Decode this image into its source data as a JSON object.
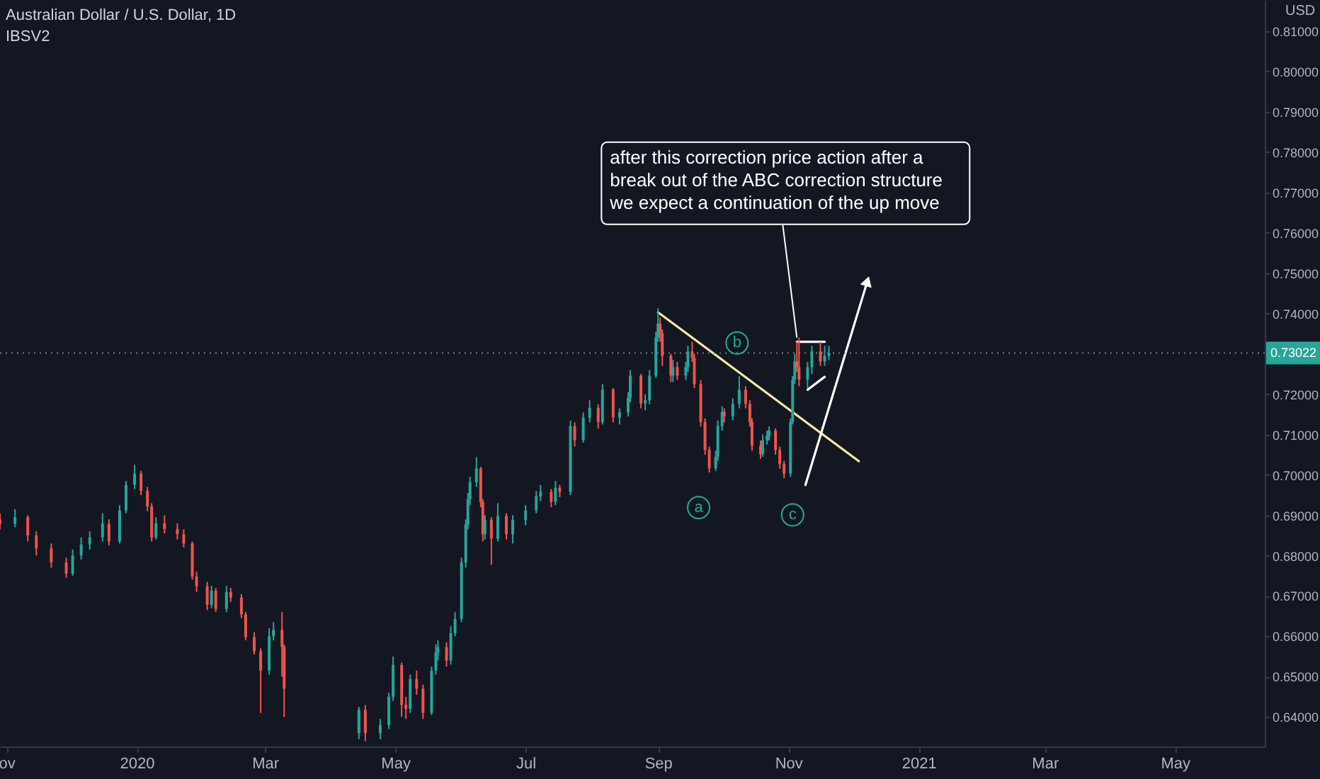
{
  "chart_data": {
    "type": "candlestick",
    "title": "Australian Dollar / U.S. Dollar, 1D",
    "subtitle": "IBSV2",
    "ylabel": "USD",
    "colors": [
      "#ef5350",
      "#26a69a",
      "#ef5350",
      "#ef5350",
      "#ef5350",
      "#ef5350",
      "#26a69a",
      "#26a69a",
      "#26a69a",
      "#26a69a",
      "#ef5350",
      "#26a69a",
      "#26a69a",
      "#26a69a",
      "#ef5350",
      "#ef5350",
      "#ef5350",
      "#26a69a",
      "#ef5350",
      "#ef5350",
      "#ef5350",
      "#ef5350",
      "#ef5350",
      "#ef5350",
      "#26a69a",
      "#ef5350",
      "#26a69a",
      "#ef5350",
      "#ef5350",
      "#ef5350",
      "#ef5350",
      "#ef5350",
      "#26a69a",
      "#26a69a",
      "#ef5350",
      "#ef5350",
      "#26a69a",
      "#ef5350",
      "#26a69a",
      "#26a69a",
      "#26a69a",
      "#ef5350",
      "#ef5350",
      "#26a69a",
      "#ef5350",
      "#ef5350",
      "#26a69a",
      "#26a69a",
      "#26a69a",
      "#ef5350",
      "#26a69a",
      "#26a69a",
      "#26a69a",
      "#26a69a",
      "#26a69a",
      "#26a69a",
      "#26a69a",
      "#ef5350",
      "#ef5350",
      "#26a69a",
      "#ef5350",
      "#26a69a",
      "#ef5350",
      "#26a69a",
      "#26a69a",
      "#26a69a",
      "#26a69a",
      "#ef5350",
      "#26a69a",
      "#ef5350",
      "#26a69a",
      "#ef5350",
      "#26a69a",
      "#26a69a",
      "#ef5350",
      "#26a69a",
      "#ef5350",
      "#26a69a",
      "#26a69a",
      "#26a69a",
      "#ef5350",
      "#26a69a",
      "#26a69a",
      "#26a69a",
      "#26a69a",
      "#ef5350",
      "#ef5350",
      "#ef5350",
      "#26a69a",
      "#ef5350",
      "#26a69a",
      "#26a69a",
      "#ef5350",
      "#ef5350",
      "#ef5350",
      "#ef5350",
      "#ef5350",
      "#26a69a",
      "#26a69a",
      "#26a69a",
      "#ef5350",
      "#26a69a",
      "#26a69a",
      "#ef5350",
      "#ef5350",
      "#ef5350",
      "#ef5350",
      "#26a69a",
      "#26a69a",
      "#26a69a",
      "#ef5350",
      "#ef5350",
      "#ef5350",
      "#26a69a",
      "#26a69a",
      "#26a69a",
      "#ef5350",
      "#ef5350",
      "#26a69a",
      "#26a69a",
      "#ef5350",
      "#26a69a",
      "#26a69a"
    ],
    "x": [
      "2019-10-29",
      "2019-11-05",
      "2019-11-11",
      "2019-11-15",
      "2019-11-22",
      "2019-11-29",
      "2019-12-02",
      "2019-12-06",
      "2019-12-10",
      "2019-12-16",
      "2019-12-19",
      "2019-12-24",
      "2019-12-27",
      "2019-12-31",
      "2020-01-03",
      "2020-01-06",
      "2020-01-08",
      "2020-01-10",
      "2020-01-14",
      "2020-01-20",
      "2020-01-23",
      "2020-01-27",
      "2020-01-29",
      "2020-02-03",
      "2020-02-05",
      "2020-02-07",
      "2020-02-12",
      "2020-02-14",
      "2020-02-19",
      "2020-02-21",
      "2020-02-25",
      "2020-02-28",
      "2020-03-03",
      "2020-03-05",
      "2020-03-09",
      "2020-03-10",
      "2020-04-14",
      "2020-04-17",
      "2020-04-24",
      "2020-04-28",
      "2020-04-30",
      "2020-05-04",
      "2020-05-06",
      "2020-05-08",
      "2020-05-11",
      "2020-05-14",
      "2020-05-18",
      "2020-05-20",
      "2020-05-21",
      "2020-05-25",
      "2020-05-27",
      "2020-05-29",
      "2020-06-01",
      "2020-06-03",
      "2020-06-04",
      "2020-06-05",
      "2020-06-08",
      "2020-06-10",
      "2020-06-11",
      "2020-06-12",
      "2020-06-15",
      "2020-06-18",
      "2020-06-22",
      "2020-06-25",
      "2020-07-01",
      "2020-07-06",
      "2020-07-08",
      "2020-07-13",
      "2020-07-15",
      "2020-07-17",
      "2020-07-22",
      "2020-07-24",
      "2020-07-28",
      "2020-07-31",
      "2020-08-04",
      "2020-08-06",
      "2020-08-11",
      "2020-08-14",
      "2020-08-18",
      "2020-08-19",
      "2020-08-24",
      "2020-08-26",
      "2020-08-28",
      "2020-08-31",
      "2020-09-01",
      "2020-09-02",
      "2020-09-03",
      "2020-09-07",
      "2020-09-08",
      "2020-09-10",
      "2020-09-14",
      "2020-09-15",
      "2020-09-17",
      "2020-09-18",
      "2020-09-21",
      "2020-09-23",
      "2020-09-25",
      "2020-09-28",
      "2020-09-29",
      "2020-10-01",
      "2020-10-02",
      "2020-10-06",
      "2020-10-09",
      "2020-10-12",
      "2020-10-14",
      "2020-10-15",
      "2020-10-19",
      "2020-10-20",
      "2020-10-22",
      "2020-10-23",
      "2020-10-26",
      "2020-10-28",
      "2020-10-30",
      "2020-11-02",
      "2020-11-03",
      "2020-11-04",
      "2020-11-05",
      "2020-11-06",
      "2020-11-10",
      "2020-11-12",
      "2020-11-16",
      "2020-11-18",
      "2020-11-20"
    ],
    "ohlc": [
      [
        0.689,
        0.6905,
        0.6865,
        0.6879
      ],
      [
        0.6879,
        0.6915,
        0.687,
        0.6895
      ],
      [
        0.6895,
        0.69,
        0.6835,
        0.685
      ],
      [
        0.685,
        0.686,
        0.68,
        0.6818
      ],
      [
        0.6818,
        0.683,
        0.677,
        0.6783
      ],
      [
        0.6783,
        0.6795,
        0.6745,
        0.6755
      ],
      [
        0.6755,
        0.6815,
        0.675,
        0.68
      ],
      [
        0.68,
        0.6845,
        0.679,
        0.6828
      ],
      [
        0.6828,
        0.686,
        0.6815,
        0.6845
      ],
      [
        0.6845,
        0.6905,
        0.6835,
        0.6879
      ],
      [
        0.6879,
        0.689,
        0.6825,
        0.6835
      ],
      [
        0.6835,
        0.6925,
        0.683,
        0.6912
      ],
      [
        0.6912,
        0.6985,
        0.6905,
        0.6975
      ],
      [
        0.6975,
        0.7025,
        0.6965,
        0.7003
      ],
      [
        0.7003,
        0.701,
        0.695,
        0.696
      ],
      [
        0.696,
        0.697,
        0.691,
        0.6922
      ],
      [
        0.6922,
        0.693,
        0.6835,
        0.6845
      ],
      [
        0.6845,
        0.6895,
        0.684,
        0.688
      ],
      [
        0.688,
        0.69,
        0.6855,
        0.6866
      ],
      [
        0.6866,
        0.688,
        0.684,
        0.6853
      ],
      [
        0.6853,
        0.6865,
        0.682,
        0.683
      ],
      [
        0.683,
        0.6835,
        0.674,
        0.6748
      ],
      [
        0.6748,
        0.676,
        0.671,
        0.6724
      ],
      [
        0.6724,
        0.6735,
        0.6665,
        0.6678
      ],
      [
        0.6678,
        0.6725,
        0.667,
        0.6713
      ],
      [
        0.6713,
        0.672,
        0.666,
        0.6668
      ],
      [
        0.6668,
        0.6725,
        0.666,
        0.671
      ],
      [
        0.671,
        0.672,
        0.6685,
        0.6696
      ],
      [
        0.6696,
        0.6705,
        0.6645,
        0.6654
      ],
      [
        0.6654,
        0.666,
        0.659,
        0.6598
      ],
      [
        0.6598,
        0.661,
        0.6555,
        0.6563
      ],
      [
        0.6563,
        0.657,
        0.641,
        0.6515
      ],
      [
        0.6515,
        0.662,
        0.6505,
        0.66
      ],
      [
        0.66,
        0.6635,
        0.659,
        0.6616
      ],
      [
        0.6616,
        0.666,
        0.65,
        0.6574
      ],
      [
        0.6574,
        0.658,
        0.64,
        0.647
      ],
      [
        0.636,
        0.6425,
        0.6345,
        0.6418
      ],
      [
        0.6418,
        0.643,
        0.634,
        0.636
      ],
      [
        0.636,
        0.6395,
        0.6345,
        0.638
      ],
      [
        0.638,
        0.646,
        0.637,
        0.645
      ],
      [
        0.645,
        0.655,
        0.644,
        0.6529
      ],
      [
        0.6529,
        0.6535,
        0.64,
        0.643
      ],
      [
        0.643,
        0.645,
        0.6395,
        0.642
      ],
      [
        0.642,
        0.6505,
        0.641,
        0.6494
      ],
      [
        0.6494,
        0.6515,
        0.6455,
        0.647
      ],
      [
        0.647,
        0.648,
        0.6395,
        0.641
      ],
      [
        0.641,
        0.6525,
        0.6405,
        0.6515
      ],
      [
        0.6515,
        0.658,
        0.6505,
        0.656
      ],
      [
        0.656,
        0.659,
        0.654,
        0.6573
      ],
      [
        0.6573,
        0.6585,
        0.6525,
        0.654
      ],
      [
        0.654,
        0.6625,
        0.653,
        0.6608
      ],
      [
        0.6608,
        0.666,
        0.66,
        0.6643
      ],
      [
        0.6643,
        0.6795,
        0.6635,
        0.6783
      ],
      [
        0.6783,
        0.689,
        0.677,
        0.6877
      ],
      [
        0.6877,
        0.6955,
        0.6865,
        0.694
      ],
      [
        0.694,
        0.6995,
        0.6925,
        0.6982
      ],
      [
        0.6982,
        0.7044,
        0.697,
        0.7016
      ],
      [
        0.7016,
        0.702,
        0.692,
        0.6933
      ],
      [
        0.6933,
        0.694,
        0.6835,
        0.6853
      ],
      [
        0.6853,
        0.69,
        0.684,
        0.6888
      ],
      [
        0.6888,
        0.6895,
        0.6777,
        0.6842
      ],
      [
        0.6842,
        0.693,
        0.6835,
        0.6898
      ],
      [
        0.6898,
        0.6905,
        0.684,
        0.6853
      ],
      [
        0.6853,
        0.69,
        0.683,
        0.6888
      ],
      [
        0.6888,
        0.6925,
        0.6875,
        0.6912
      ],
      [
        0.6912,
        0.696,
        0.6905,
        0.6947
      ],
      [
        0.6947,
        0.6975,
        0.6935,
        0.6958
      ],
      [
        0.6958,
        0.6965,
        0.692,
        0.6933
      ],
      [
        0.6933,
        0.6985,
        0.6925,
        0.6968
      ],
      [
        0.6968,
        0.6975,
        0.6945,
        0.6958
      ],
      [
        0.6958,
        0.7135,
        0.695,
        0.7121
      ],
      [
        0.7121,
        0.713,
        0.707,
        0.7086
      ],
      [
        0.7086,
        0.7155,
        0.708,
        0.7142
      ],
      [
        0.7142,
        0.7185,
        0.713,
        0.7166
      ],
      [
        0.7166,
        0.7175,
        0.7115,
        0.7131
      ],
      [
        0.7131,
        0.7225,
        0.7125,
        0.7211
      ],
      [
        0.7211,
        0.7215,
        0.713,
        0.7142
      ],
      [
        0.7142,
        0.7165,
        0.7125,
        0.7155
      ],
      [
        0.7155,
        0.7205,
        0.7145,
        0.7191
      ],
      [
        0.7191,
        0.726,
        0.718,
        0.7246
      ],
      [
        0.7246,
        0.725,
        0.7165,
        0.7177
      ],
      [
        0.7177,
        0.72,
        0.716,
        0.7185
      ],
      [
        0.7185,
        0.726,
        0.7175,
        0.7246
      ],
      [
        0.7246,
        0.7355,
        0.724,
        0.734
      ],
      [
        0.734,
        0.7413,
        0.733,
        0.7375
      ],
      [
        0.7375,
        0.739,
        0.733,
        0.7351
      ],
      [
        0.7351,
        0.736,
        0.727,
        0.7295
      ],
      [
        0.7295,
        0.73,
        0.723,
        0.7246
      ],
      [
        0.7246,
        0.7285,
        0.723,
        0.7267
      ],
      [
        0.7267,
        0.728,
        0.7235,
        0.7246
      ],
      [
        0.7246,
        0.728,
        0.7235,
        0.7267
      ],
      [
        0.7267,
        0.732,
        0.7255,
        0.7306
      ],
      [
        0.7306,
        0.733,
        0.728,
        0.729
      ],
      [
        0.729,
        0.73,
        0.7215,
        0.7225
      ],
      [
        0.7225,
        0.7235,
        0.712,
        0.7131
      ],
      [
        0.7131,
        0.714,
        0.705,
        0.7062
      ],
      [
        0.7062,
        0.707,
        0.7006,
        0.7016
      ],
      [
        0.7016,
        0.706,
        0.701,
        0.7045
      ],
      [
        0.7045,
        0.7135,
        0.7035,
        0.7121
      ],
      [
        0.7121,
        0.717,
        0.711,
        0.7156
      ],
      [
        0.7156,
        0.7165,
        0.713,
        0.7145
      ],
      [
        0.7145,
        0.719,
        0.7135,
        0.7176
      ],
      [
        0.7176,
        0.7245,
        0.7165,
        0.7211
      ],
      [
        0.7211,
        0.722,
        0.7165,
        0.7176
      ],
      [
        0.7176,
        0.7185,
        0.712,
        0.7131
      ],
      [
        0.7131,
        0.714,
        0.706,
        0.7072
      ],
      [
        0.7072,
        0.7085,
        0.704,
        0.7051
      ],
      [
        0.7051,
        0.71,
        0.7045,
        0.7086
      ],
      [
        0.7086,
        0.711,
        0.7075,
        0.7097
      ],
      [
        0.7097,
        0.712,
        0.7085,
        0.711
      ],
      [
        0.711,
        0.7115,
        0.705,
        0.7062
      ],
      [
        0.7062,
        0.707,
        0.7015,
        0.7027
      ],
      [
        0.7027,
        0.7035,
        0.6991,
        0.7003
      ],
      [
        0.7003,
        0.714,
        0.6995,
        0.7131
      ],
      [
        0.7131,
        0.7245,
        0.7125,
        0.7236
      ],
      [
        0.7236,
        0.73,
        0.7225,
        0.7281
      ],
      [
        0.7281,
        0.733,
        0.7255,
        0.7267
      ],
      [
        0.7267,
        0.734,
        0.722,
        0.7236
      ],
      [
        0.7236,
        0.728,
        0.7215,
        0.7267
      ],
      [
        0.7267,
        0.732,
        0.725,
        0.7306
      ],
      [
        0.7306,
        0.733,
        0.727,
        0.7281
      ],
      [
        0.7281,
        0.732,
        0.727,
        0.7295
      ],
      [
        0.7295,
        0.732,
        0.7285,
        0.7302
      ]
    ],
    "series": [
      {
        "type": "line",
        "color": "#f5e6a8",
        "x": [
          "2020-09-01",
          "2020-12-04"
        ],
        "values": [
          0.7403,
          0.7034
        ]
      },
      {
        "type": "line",
        "color": "#ffffff",
        "marker": "triangle",
        "x": [
          "2020-11-09",
          "2020-12-08"
        ],
        "values": [
          0.6975,
          0.748
        ]
      },
      {
        "type": "line",
        "color": "#ffffff",
        "x": [
          "2020-11-05",
          "2020-11-18"
        ],
        "values": [
          0.733,
          0.733
        ]
      },
      {
        "type": "line",
        "color": "#ffffff",
        "x": [
          "2020-11-10",
          "2020-11-18"
        ],
        "values": [
          0.7211,
          0.7243
        ]
      }
    ],
    "ref_lines": [
      {
        "axis": "y",
        "value": 0.73022,
        "label": "0.73022",
        "color": "#787b86",
        "line_style": "dotted"
      }
    ],
    "annotations": [
      {
        "text": "after this correction price action after a break out of the ABC correction structure we expect a continuation of the up move",
        "x": "2020-11-05",
        "y": 0.734
      },
      {
        "text": "a",
        "x": "2020-09-20",
        "y": 0.6919
      },
      {
        "text": "b",
        "x": "2020-10-08",
        "y": 0.7327
      },
      {
        "text": "c",
        "x": "2020-11-03",
        "y": 0.6901
      }
    ],
    "xlim": [
      "2019-10-29",
      "2021-06-12"
    ],
    "xticks": [
      {
        "value": "2019-11-01",
        "label": "ov"
      },
      {
        "value": "2020-01-01",
        "label": "2020"
      },
      {
        "value": "2020-03-01",
        "label": "Mar"
      },
      {
        "value": "2020-05-01",
        "label": "May"
      },
      {
        "value": "2020-07-01",
        "label": "Jul"
      },
      {
        "value": "2020-09-01",
        "label": "Sep"
      },
      {
        "value": "2020-11-01",
        "label": "Nov"
      },
      {
        "value": "2021-01-01",
        "label": "2021"
      },
      {
        "value": "2021-03-01",
        "label": "Mar"
      },
      {
        "value": "2021-05-01",
        "label": "May"
      }
    ],
    "ylim": [
      0.6327,
      0.8177
    ],
    "yticks": [
      {
        "value": 0.64,
        "label": "0.64000"
      },
      {
        "value": 0.65,
        "label": "0.65000"
      },
      {
        "value": 0.66,
        "label": "0.66000"
      },
      {
        "value": 0.67,
        "label": "0.67000"
      },
      {
        "value": 0.68,
        "label": "0.68000"
      },
      {
        "value": 0.69,
        "label": "0.69000"
      },
      {
        "value": 0.7,
        "label": "0.70000"
      },
      {
        "value": 0.71,
        "label": "0.71000"
      },
      {
        "value": 0.72,
        "label": "0.72000"
      },
      {
        "value": 0.74,
        "label": "0.74000"
      },
      {
        "value": 0.75,
        "label": "0.75000"
      },
      {
        "value": 0.76,
        "label": "0.76000"
      },
      {
        "value": 0.77,
        "label": "0.77000"
      },
      {
        "value": 0.78,
        "label": "0.78000"
      },
      {
        "value": 0.79,
        "label": "0.79000"
      },
      {
        "value": 0.8,
        "label": "0.80000"
      },
      {
        "value": 0.81,
        "label": "0.81000"
      }
    ]
  }
}
